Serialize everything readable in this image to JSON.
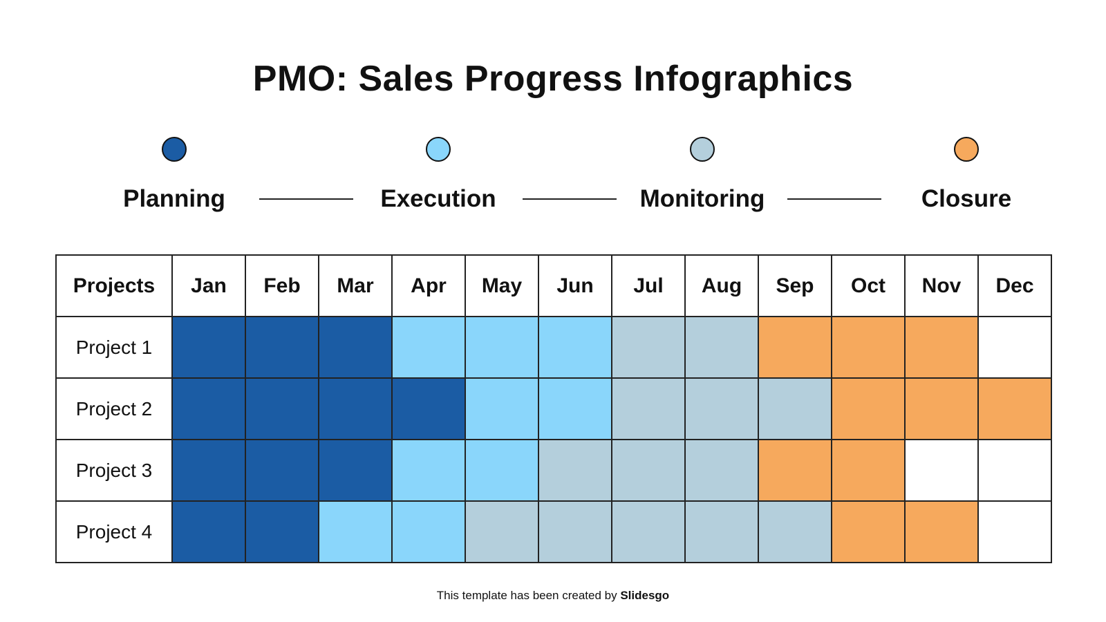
{
  "title": "PMO: Sales Progress Infographics",
  "phases": [
    {
      "key": "P",
      "label": "Planning",
      "color": "#1b5ca4"
    },
    {
      "key": "E",
      "label": "Execution",
      "color": "#8ad6fb"
    },
    {
      "key": "M",
      "label": "Monitoring",
      "color": "#b4cfdc"
    },
    {
      "key": "C",
      "label": "Closure",
      "color": "#f6a95d"
    }
  ],
  "table": {
    "header": "Projects",
    "months": [
      "Jan",
      "Feb",
      "Mar",
      "Apr",
      "May",
      "Jun",
      "Jul",
      "Aug",
      "Sep",
      "Oct",
      "Nov",
      "Dec"
    ],
    "rows": [
      {
        "name": "Project 1",
        "cells": [
          "P",
          "P",
          "P",
          "E",
          "E",
          "E",
          "M",
          "M",
          "C",
          "C",
          "C",
          ""
        ]
      },
      {
        "name": "Project 2",
        "cells": [
          "P",
          "P",
          "P",
          "P",
          "E",
          "E",
          "M",
          "M",
          "M",
          "C",
          "C",
          "C"
        ]
      },
      {
        "name": "Project 3",
        "cells": [
          "P",
          "P",
          "P",
          "E",
          "E",
          "M",
          "M",
          "M",
          "C",
          "C",
          "",
          ""
        ]
      },
      {
        "name": "Project 4",
        "cells": [
          "P",
          "P",
          "E",
          "E",
          "M",
          "M",
          "M",
          "M",
          "M",
          "C",
          "C",
          ""
        ]
      }
    ]
  },
  "footer": {
    "text": "This template has been created by ",
    "brand": "Slidesgo"
  }
}
